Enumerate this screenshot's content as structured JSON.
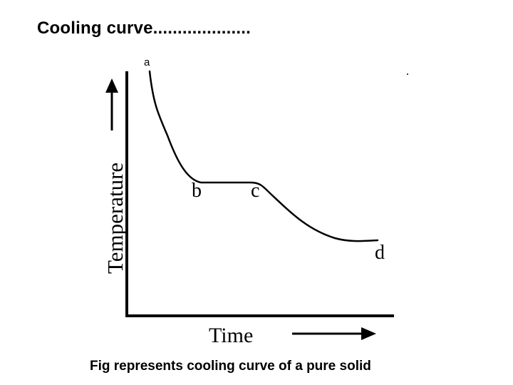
{
  "slide": {
    "title": "Cooling curve....................",
    "caption": "Fig represents cooling curve of a pure solid"
  },
  "diagram": {
    "y_axis_label": "Temperature",
    "x_axis_label": "Time",
    "point_labels": {
      "a": "a",
      "b": "b",
      "c": "c",
      "d": "d"
    }
  },
  "colors": {
    "line": "#000000",
    "background": "#ffffff"
  }
}
